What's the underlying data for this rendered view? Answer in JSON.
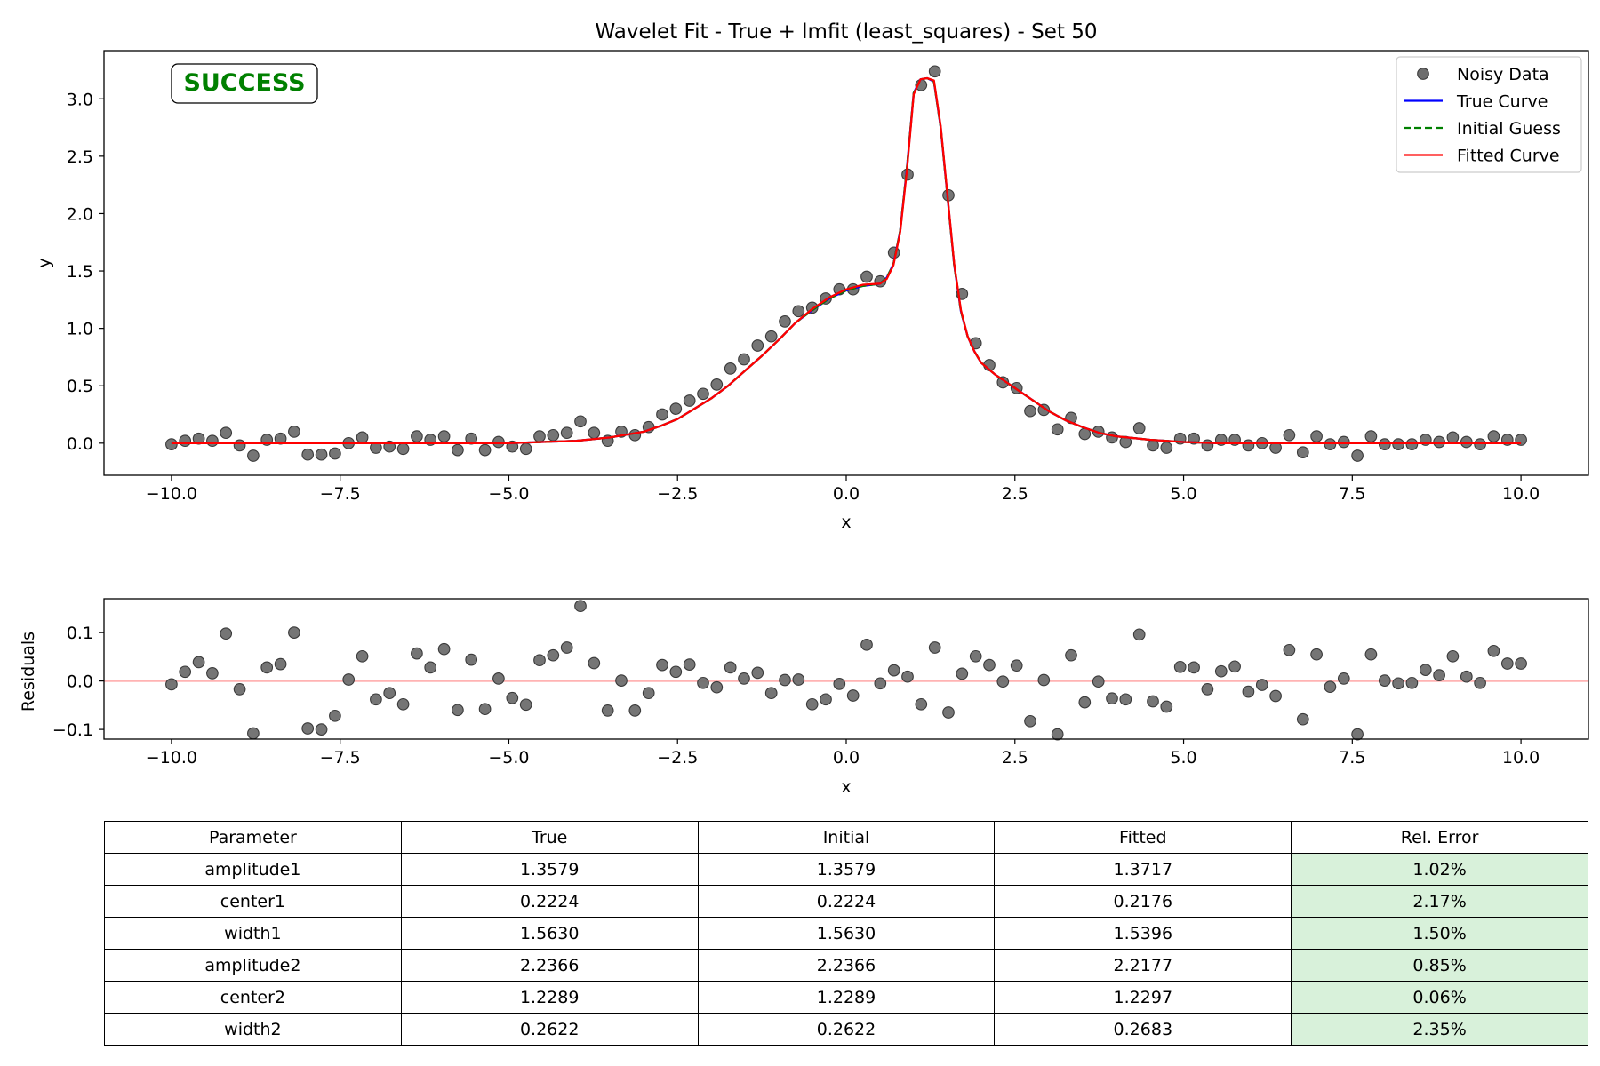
{
  "chart_data": [
    {
      "type": "scatter",
      "title": "Wavelet Fit - True + lmfit (least_squares) - Set 50",
      "xlabel": "x",
      "ylabel": "y",
      "xlim": [
        -11.0,
        11.0
      ],
      "ylim": [
        -0.28,
        3.42
      ],
      "xticks": [
        -10.0,
        -7.5,
        -5.0,
        -2.5,
        0.0,
        2.5,
        5.0,
        7.5,
        10.0
      ],
      "xtick_labels": [
        "−10.0",
        "−7.5",
        "−5.0",
        "−2.5",
        "0.0",
        "2.5",
        "5.0",
        "7.5",
        "10.0"
      ],
      "yticks": [
        0.0,
        0.5,
        1.0,
        1.5,
        2.0,
        2.5,
        3.0
      ],
      "ytick_labels": [
        "0.0",
        "0.5",
        "1.0",
        "1.5",
        "2.0",
        "2.5",
        "3.0"
      ],
      "grid": false,
      "legend_position": "top-right",
      "status_badge": {
        "text": "SUCCESS",
        "color": "#008000"
      },
      "series": [
        {
          "name": "Noisy Data",
          "style": "markers",
          "color": "#6e6e6e",
          "x": [
            -10.0,
            -9.798,
            -9.596,
            -9.394,
            -9.192,
            -8.99,
            -8.788,
            -8.586,
            -8.384,
            -8.182,
            -7.98,
            -7.778,
            -7.576,
            -7.374,
            -7.172,
            -6.97,
            -6.768,
            -6.566,
            -6.364,
            -6.162,
            -5.96,
            -5.758,
            -5.556,
            -5.354,
            -5.152,
            -4.949,
            -4.747,
            -4.545,
            -4.343,
            -4.141,
            -3.939,
            -3.737,
            -3.535,
            -3.333,
            -3.131,
            -2.929,
            -2.727,
            -2.525,
            -2.323,
            -2.121,
            -1.919,
            -1.717,
            -1.515,
            -1.313,
            -1.111,
            -0.909,
            -0.707,
            -0.505,
            -0.303,
            -0.101,
            0.101,
            0.303,
            0.505,
            0.707,
            0.909,
            1.111,
            1.313,
            1.515,
            1.717,
            1.919,
            2.121,
            2.323,
            2.525,
            2.727,
            2.929,
            3.131,
            3.333,
            3.535,
            3.737,
            3.939,
            4.141,
            4.343,
            4.545,
            4.747,
            4.949,
            5.152,
            5.354,
            5.556,
            5.758,
            5.96,
            6.162,
            6.364,
            6.566,
            6.768,
            6.97,
            7.172,
            7.374,
            7.576,
            7.778,
            7.98,
            8.182,
            8.384,
            8.586,
            8.788,
            8.99,
            9.192,
            9.394,
            9.596,
            9.798,
            10.0
          ],
          "y": [
            -0.01,
            0.02,
            0.04,
            0.02,
            0.09,
            -0.02,
            -0.11,
            0.03,
            0.04,
            0.1,
            -0.1,
            -0.1,
            -0.09,
            0.0,
            0.05,
            -0.04,
            -0.03,
            -0.05,
            0.06,
            0.03,
            0.06,
            -0.06,
            0.04,
            -0.06,
            0.01,
            -0.03,
            -0.05,
            0.06,
            0.07,
            0.09,
            0.19,
            0.09,
            0.02,
            0.1,
            0.07,
            0.14,
            0.25,
            0.3,
            0.37,
            0.43,
            0.51,
            0.65,
            0.73,
            0.85,
            0.93,
            1.06,
            1.15,
            1.18,
            1.26,
            1.34,
            1.34,
            1.45,
            1.41,
            1.66,
            2.34,
            3.12,
            3.24,
            2.16,
            1.3,
            0.87,
            0.68,
            0.53,
            0.48,
            0.28,
            0.29,
            0.12,
            0.22,
            0.08,
            0.1,
            0.05,
            0.01,
            0.13,
            -0.02,
            -0.04,
            0.04,
            0.04,
            -0.02,
            0.03,
            0.03,
            -0.02,
            0.0,
            -0.04,
            0.07,
            -0.08,
            0.06,
            -0.01,
            0.01,
            -0.11,
            0.06,
            -0.01,
            -0.01,
            -0.01,
            0.03,
            0.01,
            0.05,
            0.01,
            -0.01,
            0.06,
            0.03,
            0.03
          ]
        },
        {
          "name": "True Curve",
          "style": "solid",
          "color": "#0000ff",
          "x": [
            -10.0,
            -9.0,
            -8.0,
            -7.0,
            -6.0,
            -5.5,
            -5.0,
            -4.5,
            -4.0,
            -3.5,
            -3.0,
            -2.75,
            -2.5,
            -2.25,
            -2.0,
            -1.75,
            -1.5,
            -1.25,
            -1.0,
            -0.75,
            -0.5,
            -0.25,
            0.0,
            0.25,
            0.5,
            0.6,
            0.7,
            0.8,
            0.9,
            1.0,
            1.1,
            1.2,
            1.3,
            1.4,
            1.5,
            1.6,
            1.7,
            1.8,
            1.9,
            2.0,
            2.2,
            2.4,
            2.6,
            2.8,
            3.0,
            3.25,
            3.5,
            3.75,
            4.0,
            4.5,
            5.0,
            5.5,
            6.0,
            7.0,
            8.0,
            9.0,
            10.0
          ],
          "y": [
            0.0,
            0.0,
            0.0,
            0.0,
            0.0,
            0.0,
            0.0,
            0.01,
            0.02,
            0.05,
            0.1,
            0.15,
            0.21,
            0.3,
            0.39,
            0.5,
            0.63,
            0.76,
            0.9,
            1.05,
            1.16,
            1.26,
            1.33,
            1.37,
            1.39,
            1.44,
            1.56,
            1.85,
            2.4,
            3.05,
            3.17,
            3.18,
            3.15,
            2.75,
            2.15,
            1.55,
            1.15,
            0.93,
            0.8,
            0.7,
            0.6,
            0.52,
            0.44,
            0.36,
            0.28,
            0.2,
            0.14,
            0.09,
            0.06,
            0.03,
            0.01,
            0.0,
            0.0,
            0.0,
            0.0,
            0.0,
            0.0
          ]
        },
        {
          "name": "Initial Guess",
          "style": "dashed",
          "color": "#008000",
          "x": [
            -10.0,
            -9.0,
            -8.0,
            -7.0,
            -6.0,
            -5.5,
            -5.0,
            -4.5,
            -4.0,
            -3.5,
            -3.0,
            -2.75,
            -2.5,
            -2.25,
            -2.0,
            -1.75,
            -1.5,
            -1.25,
            -1.0,
            -0.75,
            -0.5,
            -0.25,
            0.0,
            0.25,
            0.5,
            0.6,
            0.7,
            0.8,
            0.9,
            1.0,
            1.1,
            1.2,
            1.3,
            1.4,
            1.5,
            1.6,
            1.7,
            1.8,
            1.9,
            2.0,
            2.2,
            2.4,
            2.6,
            2.8,
            3.0,
            3.25,
            3.5,
            3.75,
            4.0,
            4.5,
            5.0,
            5.5,
            6.0,
            7.0,
            8.0,
            9.0,
            10.0
          ],
          "y": [
            0.0,
            0.0,
            0.0,
            0.0,
            0.0,
            0.0,
            0.0,
            0.01,
            0.02,
            0.05,
            0.1,
            0.15,
            0.21,
            0.3,
            0.39,
            0.5,
            0.63,
            0.76,
            0.9,
            1.05,
            1.16,
            1.26,
            1.33,
            1.37,
            1.39,
            1.44,
            1.56,
            1.85,
            2.4,
            3.05,
            3.17,
            3.18,
            3.15,
            2.75,
            2.15,
            1.55,
            1.15,
            0.93,
            0.8,
            0.7,
            0.6,
            0.52,
            0.44,
            0.36,
            0.28,
            0.2,
            0.14,
            0.09,
            0.06,
            0.03,
            0.01,
            0.0,
            0.0,
            0.0,
            0.0,
            0.0,
            0.0
          ]
        },
        {
          "name": "Fitted Curve",
          "style": "solid",
          "color": "#ff0000",
          "x": [
            -10.0,
            -9.0,
            -8.0,
            -7.0,
            -6.0,
            -5.5,
            -5.0,
            -4.5,
            -4.0,
            -3.5,
            -3.0,
            -2.75,
            -2.5,
            -2.25,
            -2.0,
            -1.75,
            -1.5,
            -1.25,
            -1.0,
            -0.75,
            -0.5,
            -0.25,
            0.0,
            0.25,
            0.5,
            0.6,
            0.7,
            0.8,
            0.9,
            1.0,
            1.1,
            1.2,
            1.3,
            1.4,
            1.5,
            1.6,
            1.7,
            1.8,
            1.9,
            2.0,
            2.2,
            2.4,
            2.6,
            2.8,
            3.0,
            3.25,
            3.5,
            3.75,
            4.0,
            4.5,
            5.0,
            5.5,
            6.0,
            7.0,
            8.0,
            9.0,
            10.0
          ],
          "y": [
            0.0,
            0.0,
            0.0,
            0.0,
            0.0,
            0.0,
            0.0,
            0.01,
            0.02,
            0.05,
            0.1,
            0.15,
            0.21,
            0.3,
            0.39,
            0.5,
            0.63,
            0.76,
            0.9,
            1.05,
            1.17,
            1.27,
            1.34,
            1.38,
            1.39,
            1.43,
            1.55,
            1.84,
            2.38,
            3.04,
            3.17,
            3.18,
            3.16,
            2.76,
            2.16,
            1.56,
            1.16,
            0.93,
            0.8,
            0.7,
            0.6,
            0.52,
            0.44,
            0.36,
            0.28,
            0.2,
            0.14,
            0.09,
            0.06,
            0.03,
            0.01,
            0.0,
            0.0,
            0.0,
            0.0,
            0.0,
            0.0
          ]
        }
      ]
    },
    {
      "type": "scatter",
      "title": "",
      "xlabel": "x",
      "ylabel": "Residuals",
      "xlim": [
        -11.0,
        11.0
      ],
      "ylim": [
        -0.12,
        0.17
      ],
      "xticks": [
        -10.0,
        -7.5,
        -5.0,
        -2.5,
        0.0,
        2.5,
        5.0,
        7.5,
        10.0
      ],
      "xtick_labels": [
        "−10.0",
        "−7.5",
        "−5.0",
        "−2.5",
        "0.0",
        "2.5",
        "5.0",
        "7.5",
        "10.0"
      ],
      "yticks": [
        -0.1,
        0.0,
        0.1
      ],
      "ytick_labels": [
        "−0.1",
        "0.0",
        "0.1"
      ],
      "grid": false,
      "reference_line": {
        "y": 0.0,
        "color": "#ffb3b3"
      },
      "series": [
        {
          "style": "markers",
          "color": "#6e6e6e",
          "x": [
            -10.0,
            -9.798,
            -9.596,
            -9.394,
            -9.192,
            -8.99,
            -8.788,
            -8.586,
            -8.384,
            -8.182,
            -7.98,
            -7.778,
            -7.576,
            -7.374,
            -7.172,
            -6.97,
            -6.768,
            -6.566,
            -6.364,
            -6.162,
            -5.96,
            -5.758,
            -5.556,
            -5.354,
            -5.152,
            -4.949,
            -4.747,
            -4.545,
            -4.343,
            -4.141,
            -3.939,
            -3.737,
            -3.535,
            -3.333,
            -3.131,
            -2.929,
            -2.727,
            -2.525,
            -2.323,
            -2.121,
            -1.919,
            -1.717,
            -1.515,
            -1.313,
            -1.111,
            -0.909,
            -0.707,
            -0.505,
            -0.303,
            -0.101,
            0.101,
            0.303,
            0.505,
            0.707,
            0.909,
            1.111,
            1.313,
            1.515,
            1.717,
            1.919,
            2.121,
            2.323,
            2.525,
            2.727,
            2.929,
            3.131,
            3.333,
            3.535,
            3.737,
            3.939,
            4.141,
            4.343,
            4.545,
            4.747,
            4.949,
            5.152,
            5.354,
            5.556,
            5.758,
            5.96,
            6.162,
            6.364,
            6.566,
            6.768,
            6.97,
            7.172,
            7.374,
            7.576,
            7.778,
            7.98,
            8.182,
            8.384,
            8.586,
            8.788,
            8.99,
            9.192,
            9.394,
            9.596,
            9.798,
            10.0
          ],
          "y": [
            -0.007,
            0.019,
            0.039,
            0.016,
            0.098,
            -0.017,
            -0.108,
            0.028,
            0.035,
            0.1,
            -0.098,
            -0.1,
            -0.072,
            0.003,
            0.051,
            -0.038,
            -0.025,
            -0.048,
            0.057,
            0.028,
            0.066,
            -0.06,
            0.044,
            -0.058,
            0.005,
            -0.035,
            -0.049,
            0.043,
            0.053,
            0.069,
            0.155,
            0.037,
            -0.061,
            0.001,
            -0.061,
            -0.025,
            0.033,
            0.019,
            0.034,
            -0.004,
            -0.013,
            0.028,
            0.005,
            0.017,
            -0.025,
            0.002,
            0.003,
            -0.048,
            -0.038,
            -0.006,
            -0.03,
            0.075,
            -0.005,
            0.022,
            0.009,
            -0.048,
            0.069,
            -0.065,
            0.015,
            0.051,
            0.033,
            -0.001,
            0.032,
            -0.083,
            0.002,
            -0.11,
            0.053,
            -0.044,
            -0.001,
            -0.036,
            -0.038,
            0.096,
            -0.042,
            -0.053,
            0.029,
            0.028,
            -0.017,
            0.02,
            0.03,
            -0.022,
            -0.008,
            -0.031,
            0.064,
            -0.079,
            0.055,
            -0.012,
            0.005,
            -0.11,
            0.055,
            0.001,
            -0.005,
            -0.004,
            0.023,
            0.012,
            0.051,
            0.009,
            -0.004,
            0.062,
            0.036,
            0.036
          ]
        }
      ]
    },
    {
      "type": "table",
      "columns": [
        "Parameter",
        "True",
        "Initial",
        "Fitted",
        "Rel. Error"
      ],
      "highlight_color": "#d8f1da",
      "rows": [
        [
          "amplitude1",
          "1.3579",
          "1.3579",
          "1.3717",
          "1.02%"
        ],
        [
          "center1",
          "0.2224",
          "0.2224",
          "0.2176",
          "2.17%"
        ],
        [
          "width1",
          "1.5630",
          "1.5630",
          "1.5396",
          "1.50%"
        ],
        [
          "amplitude2",
          "2.2366",
          "2.2366",
          "2.2177",
          "0.85%"
        ],
        [
          "center2",
          "1.2289",
          "1.2289",
          "1.2297",
          "0.06%"
        ],
        [
          "width2",
          "0.2622",
          "0.2622",
          "0.2683",
          "2.35%"
        ]
      ]
    }
  ]
}
